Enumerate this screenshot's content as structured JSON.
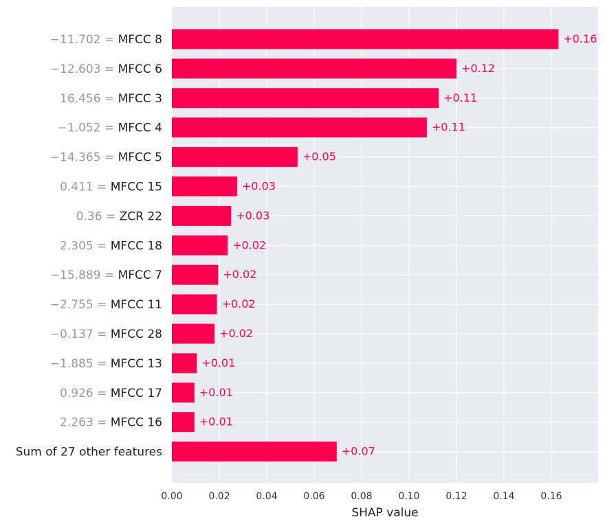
{
  "chart_data": {
    "type": "bar",
    "orientation": "horizontal",
    "xlabel": "SHAP value",
    "xlim": [
      0,
      0.18
    ],
    "xticks": [
      "0.00",
      "0.02",
      "0.04",
      "0.06",
      "0.08",
      "0.10",
      "0.12",
      "0.14",
      "0.16"
    ],
    "grid": true,
    "features": [
      {
        "value": "−11.702",
        "name": "MFCC 8",
        "shap": 0.163,
        "label": "+0.16"
      },
      {
        "value": "−12.603",
        "name": "MFCC 6",
        "shap": 0.12,
        "label": "+0.12"
      },
      {
        "value": "16.456",
        "name": "MFCC 3",
        "shap": 0.1125,
        "label": "+0.11"
      },
      {
        "value": "−1.052",
        "name": "MFCC 4",
        "shap": 0.1075,
        "label": "+0.11"
      },
      {
        "value": "−14.365",
        "name": "MFCC 5",
        "shap": 0.053,
        "label": "+0.05"
      },
      {
        "value": "0.411",
        "name": "MFCC 15",
        "shap": 0.0275,
        "label": "+0.03"
      },
      {
        "value": "0.36",
        "name": "ZCR 22",
        "shap": 0.025,
        "label": "+0.03"
      },
      {
        "value": "2.305",
        "name": "MFCC 18",
        "shap": 0.0235,
        "label": "+0.02"
      },
      {
        "value": "−15.889",
        "name": "MFCC 7",
        "shap": 0.0195,
        "label": "+0.02"
      },
      {
        "value": "−2.755",
        "name": "MFCC 11",
        "shap": 0.019,
        "label": "+0.02"
      },
      {
        "value": "−0.137",
        "name": "MFCC 28",
        "shap": 0.018,
        "label": "+0.02"
      },
      {
        "value": "−1.885",
        "name": "MFCC 13",
        "shap": 0.0105,
        "label": "+0.01"
      },
      {
        "value": "0.926",
        "name": "MFCC 17",
        "shap": 0.0095,
        "label": "+0.01"
      },
      {
        "value": "2.263",
        "name": "MFCC 16",
        "shap": 0.0095,
        "label": "+0.01"
      },
      {
        "value": "",
        "name": "Sum of 27 other features",
        "shap": 0.0695,
        "label": "+0.07"
      }
    ],
    "colors": {
      "bar": "#ff0051",
      "plot_bg": "#eaeaf2",
      "grid": "#ffffff",
      "value_text": "#999999",
      "name_text": "#222222",
      "tick_text": "#333333"
    }
  }
}
